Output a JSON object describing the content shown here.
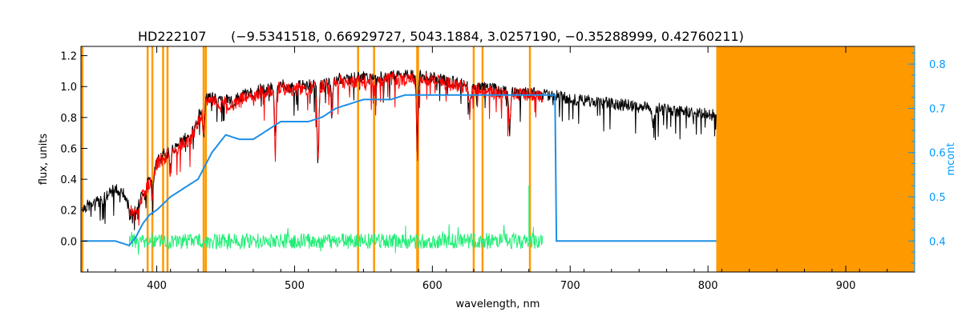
{
  "chart_data": {
    "type": "line",
    "title_star": "HD222107",
    "title_params": "(−9.5341518, 0.66929727, 5043.1884, 3.0257190, −0.35288999, 0.42760211)",
    "xlabel": "wavelength, nm",
    "ylabel": "flux, units",
    "ylabel_right": "mcont",
    "xlim": [
      345,
      950
    ],
    "ylim": [
      -0.2,
      1.26
    ],
    "ylim_right": [
      0.33,
      0.84
    ],
    "x_ticks": [
      "400",
      "500",
      "600",
      "700",
      "800",
      "900"
    ],
    "y_ticks": [
      "0.0",
      "0.2",
      "0.4",
      "0.6",
      "0.8",
      "1.0",
      "1.2"
    ],
    "y_ticks_right": [
      "0.4",
      "0.5",
      "0.6",
      "0.7",
      "0.8"
    ],
    "colors": {
      "observed": "#000000",
      "model": "#ff0000",
      "continuum": "#1e8fe6",
      "residual": "#22ee77",
      "masked": "#ff9900",
      "right_axis": "#0099ff"
    },
    "masked_region": [
      806,
      950
    ],
    "masked_lines": [
      346,
      393.4,
      396.8,
      404.6,
      407.8,
      434.0,
      435.6,
      546.1,
      557.7,
      589.0,
      589.6,
      630.0,
      636.4,
      670.8
    ],
    "series": [
      {
        "role": "observed",
        "x": [
          346,
          355,
          365,
          370,
          375,
          380,
          385,
          390,
          395,
          400,
          405,
          410,
          415,
          420,
          425,
          430,
          435,
          440,
          445,
          450,
          455,
          460,
          465,
          470,
          475,
          480,
          485,
          490,
          495,
          500,
          505,
          510,
          520,
          530,
          540,
          550,
          560,
          570,
          580,
          590,
          600,
          610,
          620,
          630,
          640,
          650,
          660,
          670,
          680,
          690,
          700,
          710,
          720,
          730,
          740,
          750,
          760,
          770,
          780,
          790,
          800,
          806
        ],
        "y": [
          0.22,
          0.24,
          0.3,
          0.34,
          0.32,
          0.22,
          0.18,
          0.32,
          0.4,
          0.52,
          0.56,
          0.58,
          0.62,
          0.66,
          0.68,
          0.8,
          0.92,
          0.93,
          0.9,
          0.92,
          0.9,
          0.93,
          0.96,
          0.95,
          0.98,
          0.98,
          1.0,
          1.01,
          1.0,
          0.99,
          1.01,
          1.01,
          1.02,
          1.05,
          1.05,
          1.06,
          1.06,
          1.07,
          1.07,
          1.07,
          1.06,
          1.04,
          1.02,
          1.0,
          0.99,
          0.97,
          0.96,
          0.96,
          0.95,
          0.94,
          0.92,
          0.91,
          0.9,
          0.89,
          0.88,
          0.87,
          0.86,
          0.85,
          0.84,
          0.83,
          0.82,
          0.81
        ]
      },
      {
        "role": "model",
        "x": [
          380,
          385,
          390,
          395,
          400,
          405,
          410,
          415,
          420,
          425,
          430,
          435,
          440,
          445,
          450,
          455,
          460,
          465,
          470,
          475,
          480,
          485,
          490,
          495,
          500,
          505,
          510,
          520,
          530,
          540,
          550,
          560,
          570,
          580,
          590,
          600,
          610,
          620,
          630,
          640,
          650,
          660,
          670,
          680
        ],
        "y": [
          0.2,
          0.17,
          0.3,
          0.38,
          0.5,
          0.54,
          0.57,
          0.6,
          0.64,
          0.66,
          0.77,
          0.89,
          0.91,
          0.88,
          0.9,
          0.88,
          0.91,
          0.94,
          0.93,
          0.96,
          0.96,
          0.98,
          0.99,
          0.98,
          0.97,
          0.99,
          0.99,
          1.0,
          1.03,
          1.03,
          1.04,
          1.04,
          1.05,
          1.05,
          1.05,
          1.04,
          1.02,
          1.0,
          0.98,
          0.97,
          0.95,
          0.95,
          0.95,
          0.94
        ]
      },
      {
        "role": "continuum",
        "axis": "right",
        "x": [
          346,
          370,
          380,
          385,
          390,
          395,
          400,
          410,
          420,
          430,
          440,
          450,
          460,
          470,
          480,
          490,
          500,
          510,
          520,
          530,
          540,
          550,
          560,
          570,
          580,
          590,
          600,
          620,
          640,
          660,
          680,
          700,
          806
        ],
        "y": [
          0.4,
          0.4,
          0.39,
          0.41,
          0.44,
          0.46,
          0.47,
          0.5,
          0.52,
          0.54,
          0.6,
          0.64,
          0.63,
          0.63,
          0.65,
          0.67,
          0.67,
          0.67,
          0.68,
          0.7,
          0.71,
          0.72,
          0.72,
          0.72,
          0.73,
          0.73,
          0.73,
          0.73,
          0.73,
          0.73,
          0.73,
          0.4,
          0.4
        ]
      },
      {
        "role": "residual",
        "x": [
          380,
          680
        ],
        "y": [
          0.0,
          0.0
        ]
      }
    ]
  }
}
